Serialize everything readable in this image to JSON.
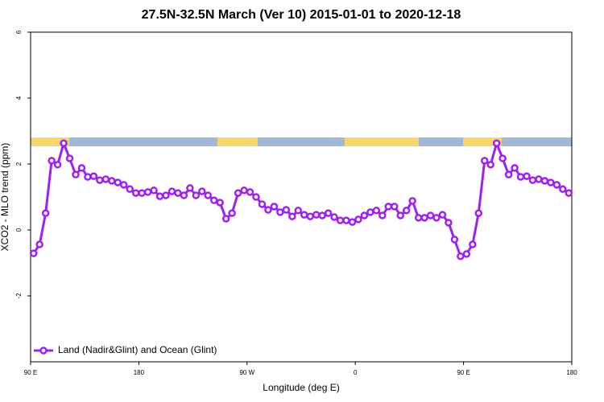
{
  "chart_data": {
    "type": "line",
    "title": "27.5N-32.5N March (Ver 10)   2015-01-01 to 2020-12-18",
    "x_label": "Longitude (deg E)",
    "y_label": "XCO2 - MLO trend (ppm)",
    "xlim": [
      90,
      540
    ],
    "ylim": [
      -4,
      6
    ],
    "xticks": [
      {
        "value": 90,
        "label": "90 E"
      },
      180,
      {
        "value": 270,
        "label": "90 W"
      },
      {
        "value": 360,
        "label": "0"
      },
      {
        "value": 450,
        "label": "90 E"
      },
      {
        "value": 540,
        "label": "180"
      }
    ],
    "yticks": [
      -2,
      0,
      2,
      4,
      6
    ],
    "legend": "bottom-left",
    "x": [
      92.5,
      97.5,
      102.5,
      107.5,
      112.5,
      117.5,
      122.5,
      127.5,
      132.5,
      137.5,
      142.5,
      147.5,
      152.5,
      157.5,
      162.5,
      167.5,
      172.5,
      177.5,
      182.5,
      187.5,
      192.5,
      197.5,
      202.5,
      207.5,
      212.5,
      217.5,
      222.5,
      227.5,
      232.5,
      237.5,
      242.5,
      247.5,
      252.5,
      257.5,
      262.5,
      267.5,
      272.5,
      277.5,
      282.5,
      287.5,
      292.5,
      297.5,
      302.5,
      307.5,
      312.5,
      317.5,
      322.5,
      327.5,
      332.5,
      337.5,
      342.5,
      347.5,
      352.5,
      357.5,
      362.5,
      367.5,
      372.5,
      377.5,
      382.5,
      387.5,
      392.5,
      397.5,
      402.5,
      407.5,
      412.5,
      417.5,
      422.5,
      427.5,
      432.5,
      437.5,
      442.5,
      447.5,
      452.5,
      457.5,
      462.5,
      467.5,
      472.5,
      477.5,
      482.5,
      487.5,
      492.5,
      497.5,
      502.5,
      507.5,
      512.5,
      517.5,
      522.5,
      527.5,
      532.5,
      537.5
    ],
    "series": [
      {
        "name": "Land (Nadir&Glint) and Ocean (Glint)",
        "color": "#a020f0",
        "values": [
          -0.71,
          -0.44,
          0.51,
          2.1,
          1.98,
          2.63,
          2.17,
          1.68,
          1.88,
          1.61,
          1.63,
          1.51,
          1.54,
          1.49,
          1.44,
          1.37,
          1.24,
          1.12,
          1.12,
          1.15,
          1.2,
          1.02,
          1.05,
          1.17,
          1.12,
          1.05,
          1.27,
          1.05,
          1.17,
          1.05,
          0.9,
          0.83,
          0.34,
          0.51,
          1.12,
          1.2,
          1.15,
          1.0,
          0.78,
          0.61,
          0.71,
          0.54,
          0.61,
          0.41,
          0.59,
          0.46,
          0.41,
          0.46,
          0.44,
          0.51,
          0.39,
          0.29,
          0.29,
          0.24,
          0.32,
          0.44,
          0.54,
          0.59,
          0.44,
          0.71,
          0.71,
          0.44,
          0.59,
          0.88,
          0.37,
          0.37,
          0.44,
          0.37,
          0.46,
          0.22,
          -0.29,
          -0.8,
          -0.73,
          -0.44,
          0.51,
          2.1,
          1.98,
          2.63,
          2.17,
          1.68,
          1.88,
          1.61,
          1.63,
          1.51,
          1.54,
          1.49,
          1.44,
          1.37,
          1.24,
          1.12
        ]
      }
    ]
  }
}
